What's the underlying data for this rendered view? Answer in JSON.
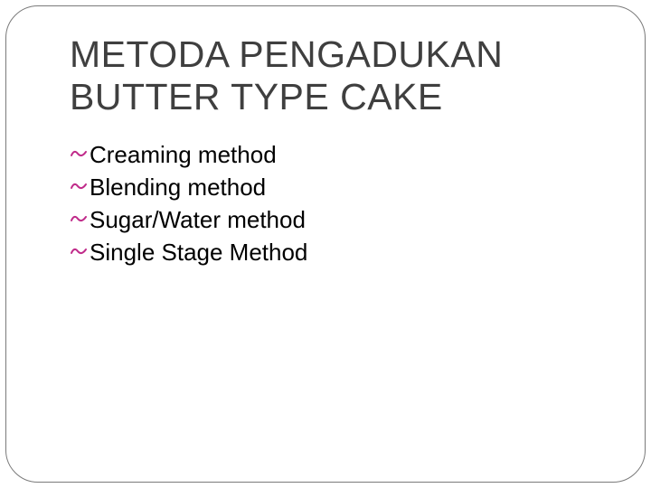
{
  "slide": {
    "title_line1": "METODA PENGADUKAN",
    "title_line2": "BUTTER TYPE CAKE",
    "bullets": [
      "Creaming method",
      "Blending method",
      "Sugar/Water method",
      "Single Stage Method"
    ],
    "styling": {
      "frame_border_color": "#7a7a7a",
      "frame_border_radius": 36,
      "title_color": "#3f3f3f",
      "title_fontsize": 41,
      "bullet_icon_color": "#c02b8a",
      "bullet_text_color": "#000000",
      "bullet_fontsize": 26,
      "background_color": "#ffffff"
    }
  }
}
